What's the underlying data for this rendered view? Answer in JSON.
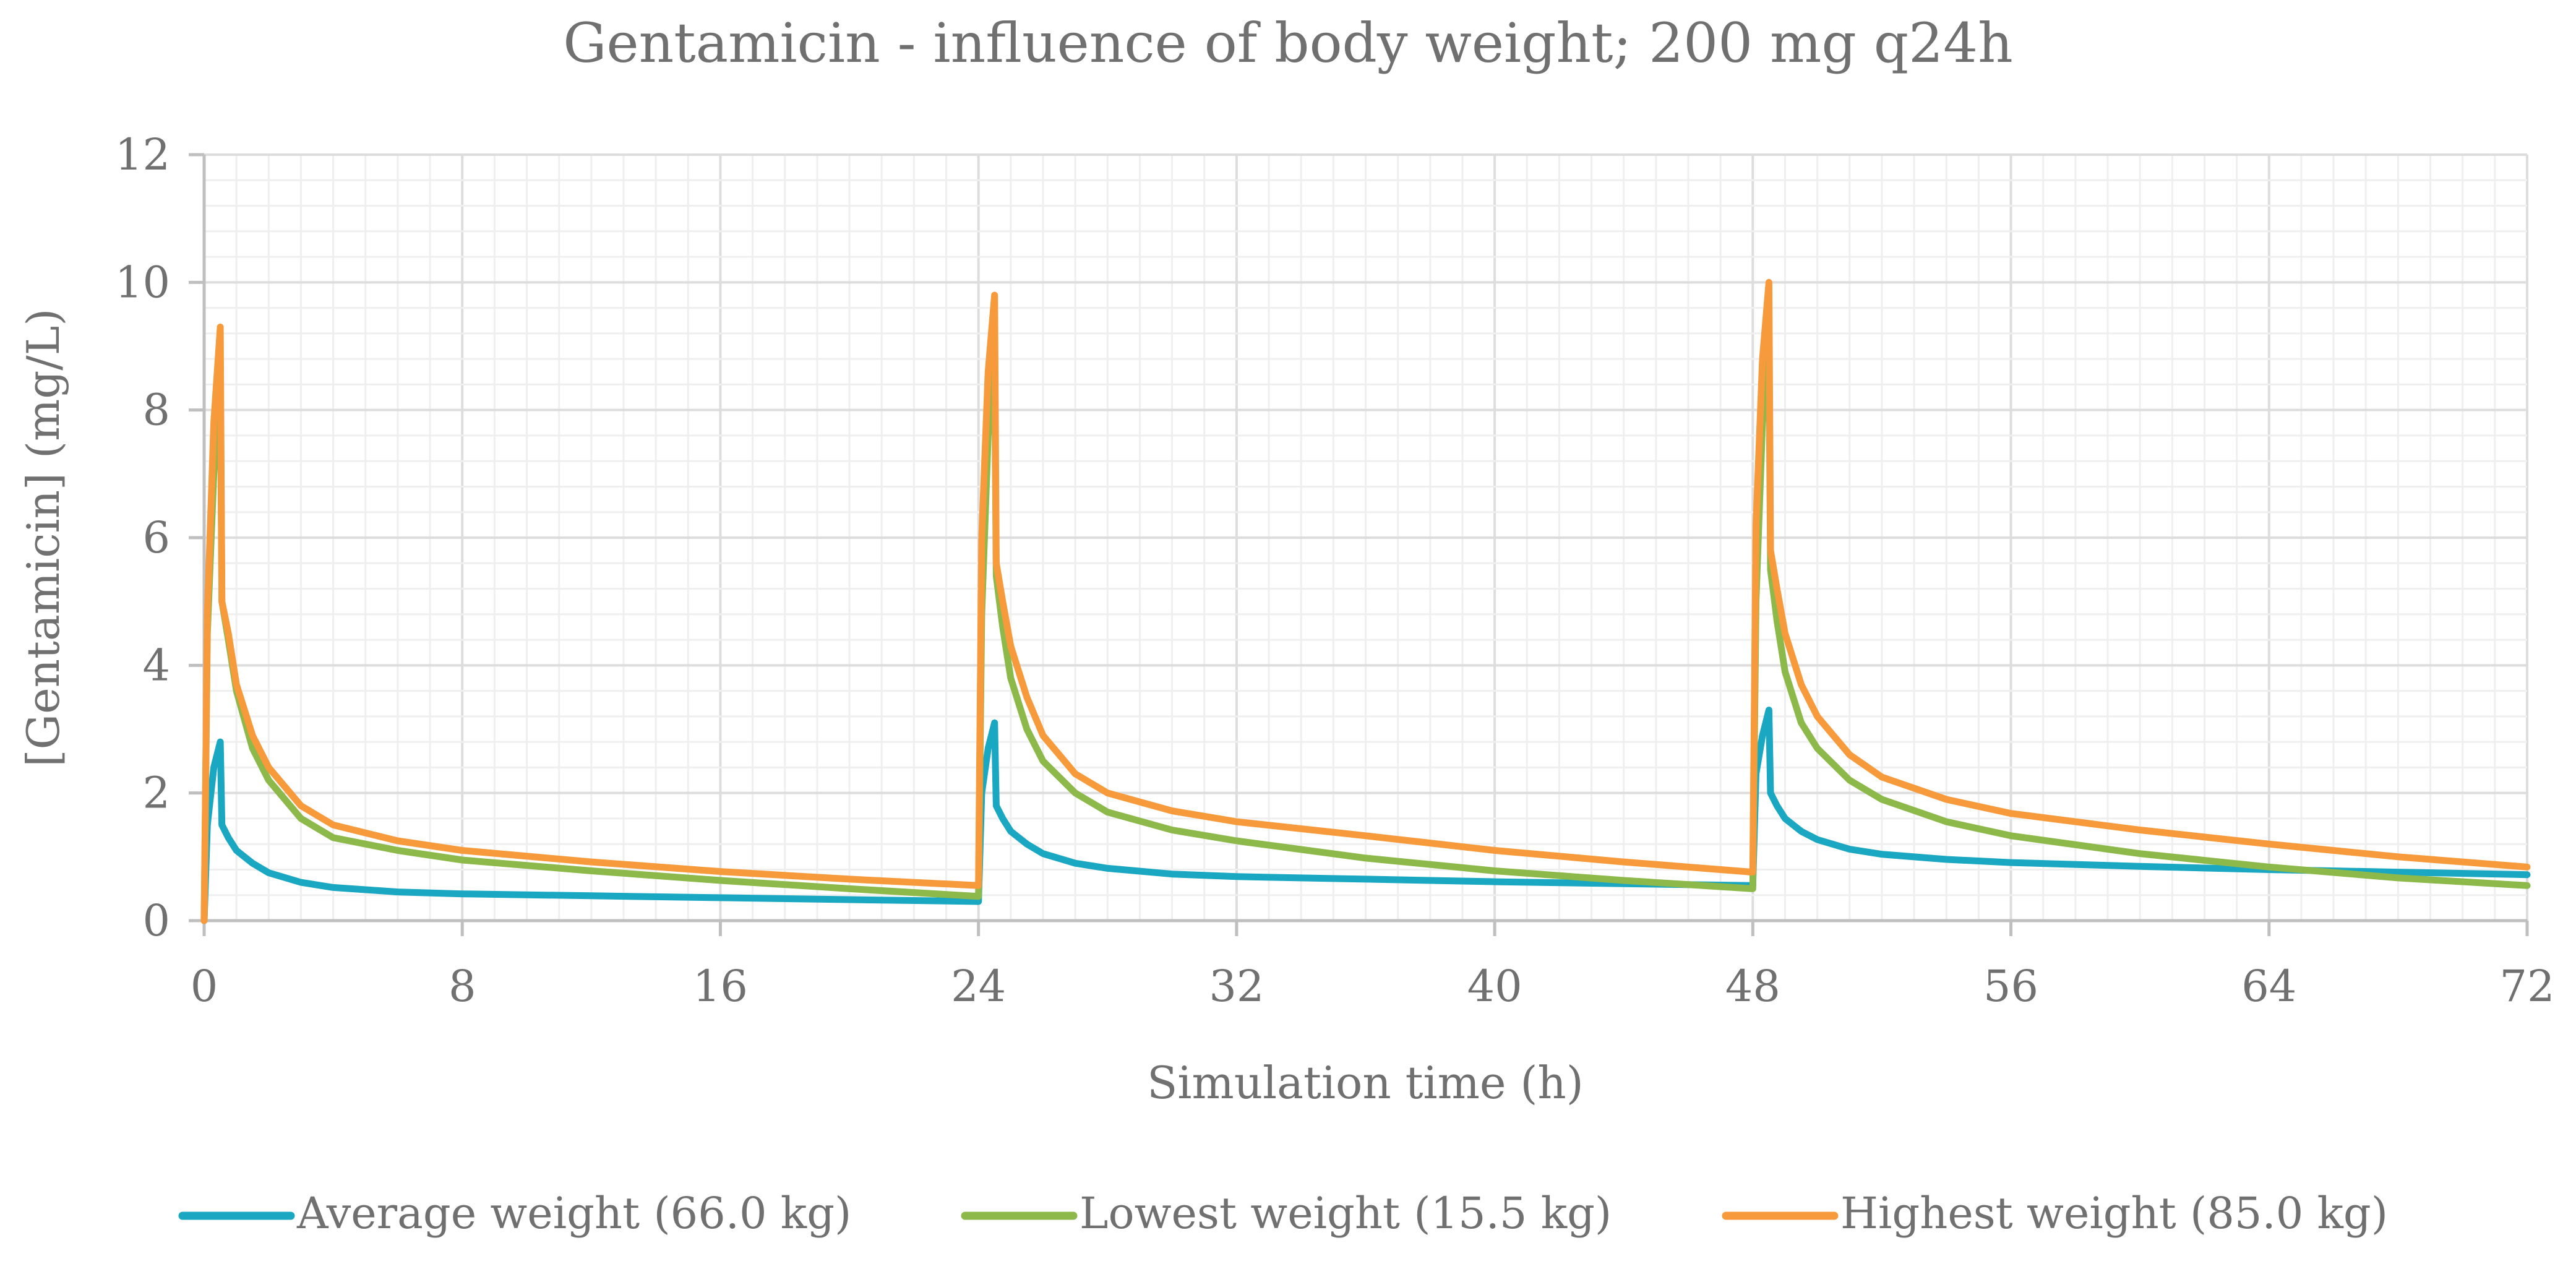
{
  "chart_data": {
    "type": "line",
    "title": "Gentamicin - influence of body weight; 200 mg q24h",
    "xlabel": "Simulation time (h)",
    "ylabel": "[Gentamicin] (mg/L)",
    "xlim": [
      0,
      72
    ],
    "ylim": [
      0,
      12
    ],
    "xticks": [
      0,
      8,
      16,
      24,
      32,
      40,
      48,
      56,
      64,
      72
    ],
    "yticks": [
      0,
      2,
      4,
      6,
      8,
      10,
      12
    ],
    "xtick_labels": [
      "0",
      "8",
      "16",
      "24",
      "32",
      "40",
      "48",
      "56",
      "64",
      "72"
    ],
    "ytick_labels": [
      "0",
      "2",
      "4",
      "6",
      "8",
      "10",
      "12"
    ],
    "grid": true,
    "legend_position": "bottom",
    "series": [
      {
        "name": "Average weight (66.0 kg)",
        "color": "#1AA7C1",
        "x": [
          0,
          0.1,
          0.3,
          0.5,
          0.55,
          0.75,
          1,
          1.5,
          2,
          3,
          4,
          6,
          8,
          12,
          16,
          20,
          24,
          24.1,
          24.3,
          24.5,
          24.55,
          24.75,
          25,
          25.5,
          26,
          27,
          28,
          30,
          32,
          36,
          40,
          44,
          48,
          48.1,
          48.3,
          48.5,
          48.55,
          48.75,
          49,
          49.5,
          50,
          51,
          52,
          54,
          56,
          60,
          64,
          68,
          72
        ],
        "y": [
          0,
          1.5,
          2.4,
          2.8,
          1.5,
          1.3,
          1.1,
          0.9,
          0.75,
          0.6,
          0.52,
          0.45,
          0.42,
          0.39,
          0.36,
          0.33,
          0.3,
          2.0,
          2.7,
          3.1,
          1.8,
          1.6,
          1.4,
          1.2,
          1.05,
          0.9,
          0.82,
          0.73,
          0.69,
          0.65,
          0.61,
          0.58,
          0.55,
          2.3,
          2.9,
          3.3,
          2.0,
          1.8,
          1.6,
          1.4,
          1.27,
          1.12,
          1.04,
          0.96,
          0.91,
          0.85,
          0.8,
          0.76,
          0.72
        ]
      },
      {
        "name": "Lowest weight (15.5 kg)",
        "color": "#8DB84A",
        "x": [
          0,
          0.1,
          0.3,
          0.5,
          0.55,
          0.75,
          1,
          1.5,
          2,
          3,
          4,
          6,
          8,
          12,
          16,
          20,
          24,
          24.1,
          24.3,
          24.5,
          24.55,
          24.75,
          25,
          25.5,
          26,
          27,
          28,
          30,
          32,
          36,
          40,
          44,
          48,
          48.1,
          48.3,
          48.5,
          48.55,
          48.75,
          49,
          49.5,
          50,
          51,
          52,
          54,
          56,
          60,
          64,
          68,
          72
        ],
        "y": [
          0,
          4.5,
          7.0,
          8.5,
          5.0,
          4.4,
          3.6,
          2.7,
          2.2,
          1.6,
          1.3,
          1.1,
          0.95,
          0.78,
          0.63,
          0.5,
          0.38,
          4.8,
          7.6,
          8.8,
          5.4,
          4.6,
          3.8,
          3.0,
          2.5,
          2.0,
          1.7,
          1.42,
          1.25,
          0.98,
          0.78,
          0.63,
          0.5,
          5.0,
          7.8,
          9.0,
          5.5,
          4.7,
          3.9,
          3.1,
          2.7,
          2.2,
          1.9,
          1.55,
          1.33,
          1.05,
          0.84,
          0.67,
          0.55
        ]
      },
      {
        "name": "Highest weight (85.0 kg)",
        "color": "#F79A3B",
        "x": [
          0,
          0.1,
          0.3,
          0.5,
          0.55,
          0.75,
          1,
          1.5,
          2,
          3,
          4,
          6,
          8,
          12,
          16,
          20,
          24,
          24.1,
          24.3,
          24.5,
          24.55,
          24.75,
          25,
          25.5,
          26,
          27,
          28,
          30,
          32,
          36,
          40,
          44,
          48,
          48.1,
          48.3,
          48.5,
          48.55,
          48.75,
          49,
          49.5,
          50,
          51,
          52,
          54,
          56,
          60,
          64,
          68,
          72
        ],
        "y": [
          0,
          4.8,
          7.8,
          9.3,
          5.0,
          4.5,
          3.7,
          2.9,
          2.4,
          1.8,
          1.5,
          1.25,
          1.1,
          0.92,
          0.77,
          0.65,
          0.55,
          6.0,
          8.6,
          9.8,
          5.6,
          5.0,
          4.3,
          3.5,
          2.9,
          2.3,
          2.0,
          1.72,
          1.55,
          1.33,
          1.1,
          0.92,
          0.76,
          6.2,
          8.8,
          10.0,
          5.8,
          5.2,
          4.5,
          3.7,
          3.2,
          2.6,
          2.25,
          1.9,
          1.68,
          1.42,
          1.2,
          1.0,
          0.84
        ]
      }
    ]
  }
}
